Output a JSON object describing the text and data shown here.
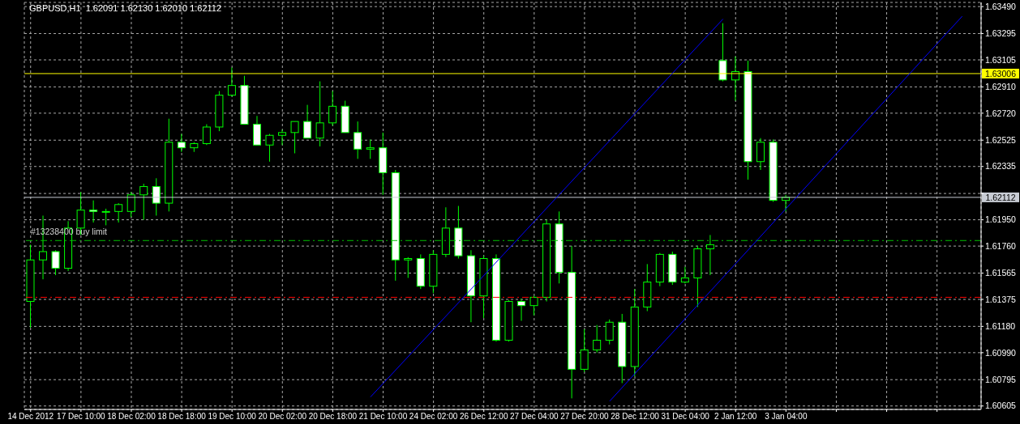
{
  "chart_data": {
    "type": "candlestick",
    "title": "GBPUSD,H1  1.62091 1.62130 1.62010 1.62112",
    "color": "#00ff00",
    "categories": [
      "14 Dec 2012",
      null,
      null,
      null,
      "17 Dec 10:00",
      null,
      null,
      null,
      "18 Dec 02:00",
      null,
      null,
      null,
      "18 Dec 18:00",
      null,
      null,
      null,
      "19 Dec 10:00",
      null,
      null,
      null,
      "20 Dec 02:00",
      null,
      null,
      null,
      "20 Dec 18:00",
      null,
      null,
      null,
      "21 Dec 10:00",
      null,
      null,
      null,
      "24 Dec 02:00",
      null,
      null,
      null,
      "26 Dec 12:00",
      null,
      null,
      null,
      "27 Dec 04:00",
      null,
      null,
      null,
      "27 Dec 20:00",
      null,
      null,
      null,
      "28 Dec 12:00",
      null,
      null,
      null,
      "31 Dec 04:00",
      null,
      null,
      null,
      "2 Jan 12:00",
      null,
      null,
      null,
      "3 Jan 04:00",
      null,
      null,
      null,
      null,
      null,
      null,
      null,
      null,
      null,
      null,
      null,
      null,
      null,
      null,
      null
    ],
    "ohlc": [
      [
        1.6136,
        1.6177,
        1.6117,
        1.6166
      ],
      [
        1.6166,
        1.6198,
        1.6152,
        1.6172
      ],
      [
        1.6172,
        1.6173,
        1.6155,
        1.616
      ],
      [
        1.616,
        1.6194,
        1.6158,
        1.6189
      ],
      [
        1.6189,
        1.6215,
        1.6184,
        1.6202
      ],
      [
        1.6202,
        1.6209,
        1.6193,
        1.6201
      ],
      [
        1.6201,
        1.6203,
        1.6191,
        1.6201
      ],
      [
        1.6201,
        1.6207,
        1.6193,
        1.6206
      ],
      [
        1.6201,
        1.6215,
        1.6197,
        1.6213
      ],
      [
        1.6213,
        1.6221,
        1.6195,
        1.6219
      ],
      [
        1.6219,
        1.6225,
        1.6198,
        1.6207
      ],
      [
        1.6207,
        1.6268,
        1.6201,
        1.6251
      ],
      [
        1.6251,
        1.6257,
        1.6244,
        1.6247
      ],
      [
        1.6247,
        1.6251,
        1.6244,
        1.625
      ],
      [
        1.625,
        1.6264,
        1.6249,
        1.6262
      ],
      [
        1.6262,
        1.6288,
        1.6259,
        1.6285
      ],
      [
        1.6285,
        1.6305,
        1.6284,
        1.6292
      ],
      [
        1.6292,
        1.6299,
        1.6264,
        1.6264
      ],
      [
        1.6264,
        1.627,
        1.6249,
        1.6249
      ],
      [
        1.6249,
        1.6257,
        1.6237,
        1.6256
      ],
      [
        1.6256,
        1.626,
        1.6249,
        1.6258
      ],
      [
        1.6258,
        1.6266,
        1.6243,
        1.6266
      ],
      [
        1.6266,
        1.6278,
        1.6254,
        1.6254
      ],
      [
        1.6254,
        1.6295,
        1.6248,
        1.6265
      ],
      [
        1.6265,
        1.6288,
        1.6263,
        1.6277
      ],
      [
        1.6277,
        1.6281,
        1.6258,
        1.6258
      ],
      [
        1.6258,
        1.6266,
        1.6239,
        1.6246
      ],
      [
        1.6246,
        1.6253,
        1.6239,
        1.6247
      ],
      [
        1.6247,
        1.6258,
        1.6213,
        1.6229
      ],
      [
        1.6229,
        1.6231,
        1.6151,
        1.6166
      ],
      [
        1.6166,
        1.6168,
        1.6153,
        1.6167
      ],
      [
        1.6167,
        1.617,
        1.6145,
        1.6147
      ],
      [
        1.6147,
        1.6173,
        1.6142,
        1.617
      ],
      [
        1.617,
        1.6204,
        1.6168,
        1.6189
      ],
      [
        1.6189,
        1.6205,
        1.6167,
        1.6169
      ],
      [
        1.6169,
        1.6173,
        1.6121,
        1.614
      ],
      [
        1.614,
        1.6169,
        1.6124,
        1.6167
      ],
      [
        1.6167,
        1.617,
        1.6107,
        1.6108
      ],
      [
        1.6108,
        1.6137,
        1.6107,
        1.6136
      ],
      [
        1.6136,
        1.6138,
        1.6122,
        1.6133
      ],
      [
        1.6133,
        1.614,
        1.6126,
        1.6139
      ],
      [
        1.6139,
        1.6195,
        1.6136,
        1.6192
      ],
      [
        1.6192,
        1.6201,
        1.6149,
        1.6157
      ],
      [
        1.6157,
        1.6176,
        1.6066,
        1.6087
      ],
      [
        1.6087,
        1.6116,
        1.6085,
        1.6101
      ],
      [
        1.6101,
        1.6119,
        1.6099,
        1.6108
      ],
      [
        1.6108,
        1.6123,
        1.6105,
        1.6121
      ],
      [
        1.6121,
        1.6127,
        1.6077,
        1.6089
      ],
      [
        1.6089,
        1.6145,
        1.6082,
        1.6132
      ],
      [
        1.6132,
        1.6163,
        1.6129,
        1.615
      ],
      [
        1.615,
        1.6171,
        1.6147,
        1.617
      ],
      [
        1.617,
        1.6172,
        1.6148,
        1.615
      ],
      [
        1.615,
        1.6161,
        1.6149,
        1.6153
      ],
      [
        1.6153,
        1.6176,
        1.6132,
        1.6174
      ],
      [
        1.6174,
        1.6184,
        1.6155,
        1.6177
      ],
      [
        1.631,
        1.6337,
        1.6295,
        1.6296
      ],
      [
        1.6296,
        1.6313,
        1.6281,
        1.6302
      ],
      [
        1.6302,
        1.631,
        1.6224,
        1.6237
      ],
      [
        1.6237,
        1.6254,
        1.6231,
        1.6251
      ],
      [
        1.6251,
        1.6253,
        1.6208,
        1.6209
      ],
      [
        1.6209,
        1.6213,
        1.6201,
        1.62112
      ],
      null,
      null,
      null,
      null,
      null,
      null,
      null,
      null,
      null,
      null,
      null,
      null,
      null,
      null,
      null
    ],
    "series": [
      {
        "type": "line",
        "color": "#0000ff",
        "values": [
          null,
          null,
          null,
          null,
          null,
          null,
          null,
          null,
          null,
          null,
          null,
          null,
          null,
          null,
          null,
          null,
          null,
          null,
          null,
          null,
          null,
          null,
          null,
          null,
          null,
          null,
          null,
          1.6067,
          null,
          null,
          null,
          null,
          null,
          null,
          null,
          null,
          null,
          null,
          null,
          null,
          null,
          null,
          null,
          null,
          null,
          null,
          null,
          null,
          null,
          null,
          null,
          null,
          null,
          null,
          null,
          1.634,
          null,
          null,
          null,
          null,
          null,
          null,
          null,
          null,
          null,
          null,
          null,
          null,
          null,
          null,
          null,
          null,
          null,
          null,
          null,
          null
        ]
      },
      {
        "type": "line",
        "color": "#0000ff",
        "values": [
          null,
          null,
          null,
          null,
          null,
          null,
          null,
          null,
          null,
          null,
          null,
          null,
          null,
          null,
          null,
          null,
          null,
          null,
          null,
          null,
          null,
          null,
          null,
          null,
          null,
          null,
          null,
          null,
          null,
          null,
          null,
          null,
          null,
          null,
          null,
          null,
          null,
          null,
          null,
          null,
          null,
          null,
          null,
          null,
          null,
          null,
          1.6064,
          null,
          null,
          null,
          null,
          null,
          null,
          null,
          null,
          null,
          null,
          null,
          null,
          null,
          null,
          null,
          null,
          null,
          null,
          null,
          null,
          null,
          null,
          null,
          null,
          null,
          null,
          null,
          1.6342,
          null
        ]
      }
    ],
    "ylim": [
      1.6058,
      1.6352
    ],
    "yticks": [
      {
        "value": 1.6349,
        "label": "1.63490"
      },
      1.63295,
      1.63105,
      {
        "value": 1.6291,
        "label": "1.62910"
      },
      {
        "value": 1.6272,
        "label": "1.62720"
      },
      1.62525,
      1.62335,
      {
        "value": 1.6214,
        "label": null
      },
      {
        "value": 1.6195,
        "label": "1.61950"
      },
      {
        "value": 1.6176,
        "label": "1.61760"
      },
      1.61565,
      1.61375,
      {
        "value": 1.6118,
        "label": "1.61180"
      },
      {
        "value": 1.6099,
        "label": "1.60990"
      },
      1.60795,
      1.60605
    ],
    "ref_lines": [
      {
        "axis": "y",
        "value": 1.63006,
        "label": "1.63006",
        "color": "#ffff00",
        "line_style": "solid"
      },
      {
        "axis": "y",
        "value": 1.62112,
        "label": "1.62112",
        "color": "#c8ccd4",
        "line_style": "solid"
      },
      {
        "axis": "y",
        "value": 1.618,
        "label": "#13238400 buy limit",
        "color": "#00c000",
        "line_style": "dashed"
      },
      {
        "axis": "y",
        "value": 1.6139,
        "color": "#ff0000",
        "line_style": "dashed"
      }
    ],
    "grid": true
  }
}
